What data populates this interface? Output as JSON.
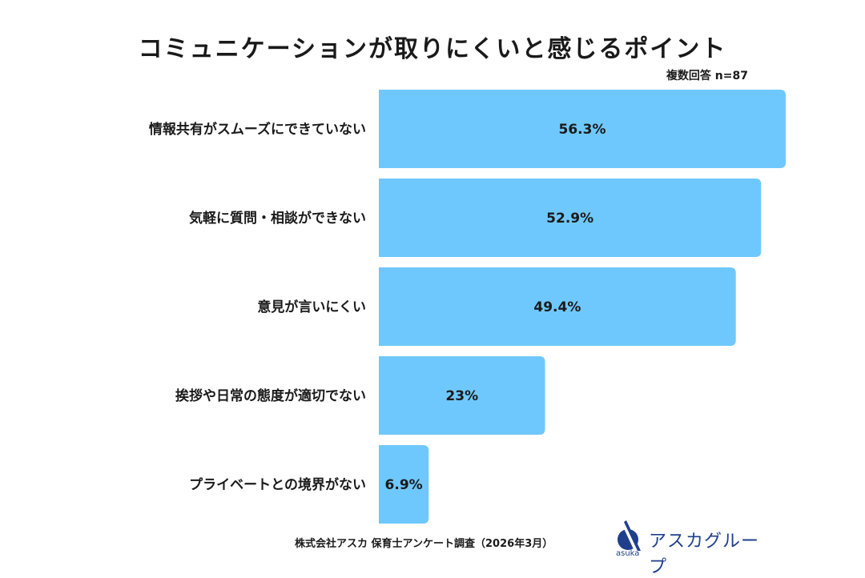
{
  "chart_data": {
    "type": "bar",
    "orientation": "horizontal",
    "title": "コミュニケーションが取りにくいと感じるポイント",
    "note": "複数回答 n=87",
    "categories": [
      "情報共有がスムーズにできていない",
      "気軽に質問・相談ができない",
      "意見が言いにくい",
      "挨拶や日常の態度が適切でない",
      "プライベートとの境界がない"
    ],
    "values": [
      56.3,
      52.9,
      49.4,
      23,
      6.9
    ],
    "value_labels": [
      "56.3%",
      "52.9%",
      "49.4%",
      "23%",
      "6.9%"
    ],
    "unit": "%",
    "xlim": [
      0,
      56.3
    ],
    "bar_color": "#6fc8fd",
    "grid": false,
    "legend": "none"
  },
  "footer": {
    "source": "株式会社アスカ 保育士アンケート調査（2026年3月）"
  },
  "logo": {
    "name": "アスカグループ",
    "sub": "asuka",
    "color": "#1f3f8c"
  }
}
